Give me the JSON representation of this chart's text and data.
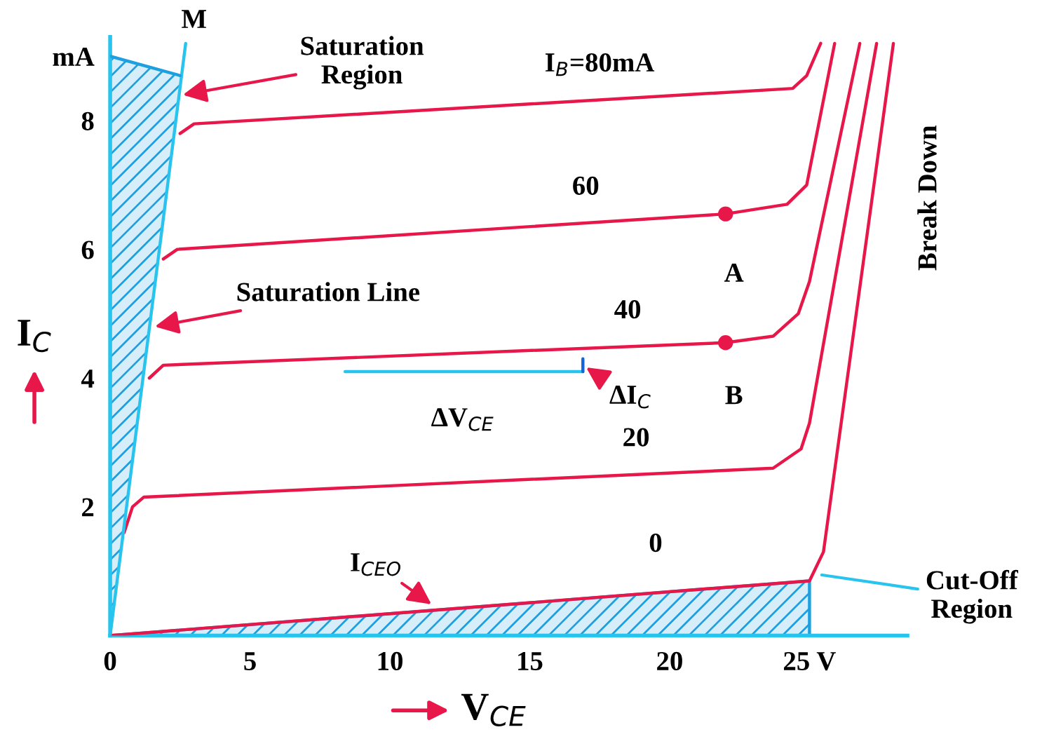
{
  "chart_data": {
    "type": "line",
    "xlabel": "V$_{CE}$",
    "ylabel": "I$_{C}$",
    "xlim": [
      0,
      28.5
    ],
    "ylim": [
      0,
      9.3
    ],
    "xticks": [
      0,
      5,
      10,
      15,
      20,
      {
        "value": 25,
        "label": "25 V"
      }
    ],
    "yticks": [
      2,
      4,
      6,
      8,
      {
        "value": 9.0,
        "label": "mA"
      }
    ],
    "grid": false,
    "legend": false,
    "line_style": "solid",
    "series": [
      {
        "name": "I$_{B}$=80mA",
        "color": "#e8174a",
        "x": [
          2.5,
          3.0,
          24.4,
          24.9,
          25.4
        ],
        "values": [
          7.8,
          7.95,
          8.5,
          8.7,
          9.2
        ]
      },
      {
        "name": "60",
        "color": "#e8174a",
        "x": [
          1.9,
          2.4,
          22.0,
          24.2,
          24.9,
          25.9
        ],
        "values": [
          5.85,
          6.0,
          6.55,
          6.7,
          7.0,
          9.2
        ]
      },
      {
        "name": "40",
        "color": "#e8174a",
        "x": [
          1.4,
          1.9,
          22.0,
          23.7,
          24.6,
          25.0,
          26.8
        ],
        "values": [
          4.0,
          4.2,
          4.55,
          4.65,
          5.0,
          5.5,
          9.2
        ]
      },
      {
        "name": "20",
        "color": "#e8174a",
        "x": [
          0.5,
          0.8,
          1.2,
          23.7,
          24.7,
          25.0,
          27.4
        ],
        "values": [
          1.6,
          2.0,
          2.15,
          2.6,
          2.9,
          3.3,
          9.2
        ]
      },
      {
        "name": "0",
        "color": "#e8174a",
        "x": [
          0,
          25.0,
          25.5,
          28.0
        ],
        "values": [
          0,
          0.85,
          1.3,
          9.2
        ]
      },
      {
        "type": "line",
        "color": "#29c4ee",
        "x": [
          0,
          2.7
        ],
        "values": [
          0,
          9.2
        ]
      },
      {
        "type": "line",
        "color": "#29c4ee",
        "x": [
          8.4,
          16.9
        ],
        "values": [
          4.1,
          4.1
        ]
      },
      {
        "type": "line",
        "color": "#1565d8",
        "x": [
          16.9,
          16.9
        ],
        "values": [
          4.1,
          4.3
        ]
      },
      {
        "type": "line",
        "color": "#1e9fe0",
        "x": [
          0,
          2.5
        ],
        "values": [
          9.0,
          8.7
        ],
        "lower": [
          0,
          8.7
        ],
        "upper": [
          9.0,
          8.7
        ]
      },
      {
        "type": "area",
        "color": "#1e9fe0",
        "x": [
          0,
          25.0,
          25.0
        ],
        "values": [
          0,
          0.85,
          0
        ]
      },
      {
        "type": "scatter",
        "color": "#e8174a",
        "marker": "circle",
        "x": [
          22.0,
          22.0
        ],
        "values": [
          6.55,
          4.55
        ]
      }
    ],
    "annotations": [
      {
        "text": "M",
        "x": 2.7,
        "y": 9.2
      },
      {
        "text": "Saturation\nRegion",
        "x": 2.6,
        "y": 8.4
      },
      {
        "text": "Saturation Line",
        "x": 1.6,
        "y": 4.8
      },
      {
        "text": "I$_{CEO}$",
        "x": 11.6,
        "y": 0.45
      },
      {
        "text": "Cut-Off\nRegion",
        "x": 25.3,
        "y": 0.95
      },
      {
        "text": "A",
        "x": 22.0,
        "y": 6.55
      },
      {
        "text": "B",
        "x": 22.0,
        "y": 4.55
      },
      {
        "text": "ΔV$_{CE}$",
        "x": 12.6,
        "y": 4.1
      },
      {
        "text": "ΔI$_{C}$",
        "x": 16.9,
        "y": 4.2
      },
      "Break Down"
    ]
  }
}
